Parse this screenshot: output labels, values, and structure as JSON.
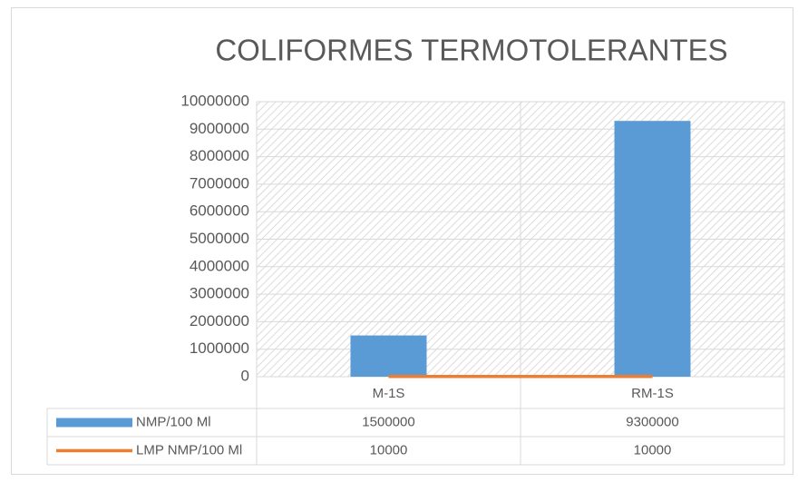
{
  "chart_data": {
    "type": "bar",
    "title": "COLIFORMES TERMOTOLERANTES",
    "categories": [
      "M-1S",
      "RM-1S"
    ],
    "series": [
      {
        "name": "NMP/100 Ml",
        "color": "#5b9bd5",
        "type": "bar",
        "values": [
          1500000,
          9300000
        ]
      },
      {
        "name": "LMP NMP/100 Ml",
        "color": "#ed7d31",
        "type": "line",
        "values": [
          10000,
          10000
        ]
      }
    ],
    "ylim": [
      0,
      10000000
    ],
    "yticks": [
      0,
      1000000,
      2000000,
      3000000,
      4000000,
      5000000,
      6000000,
      7000000,
      8000000,
      9000000,
      10000000
    ],
    "grid": true
  }
}
